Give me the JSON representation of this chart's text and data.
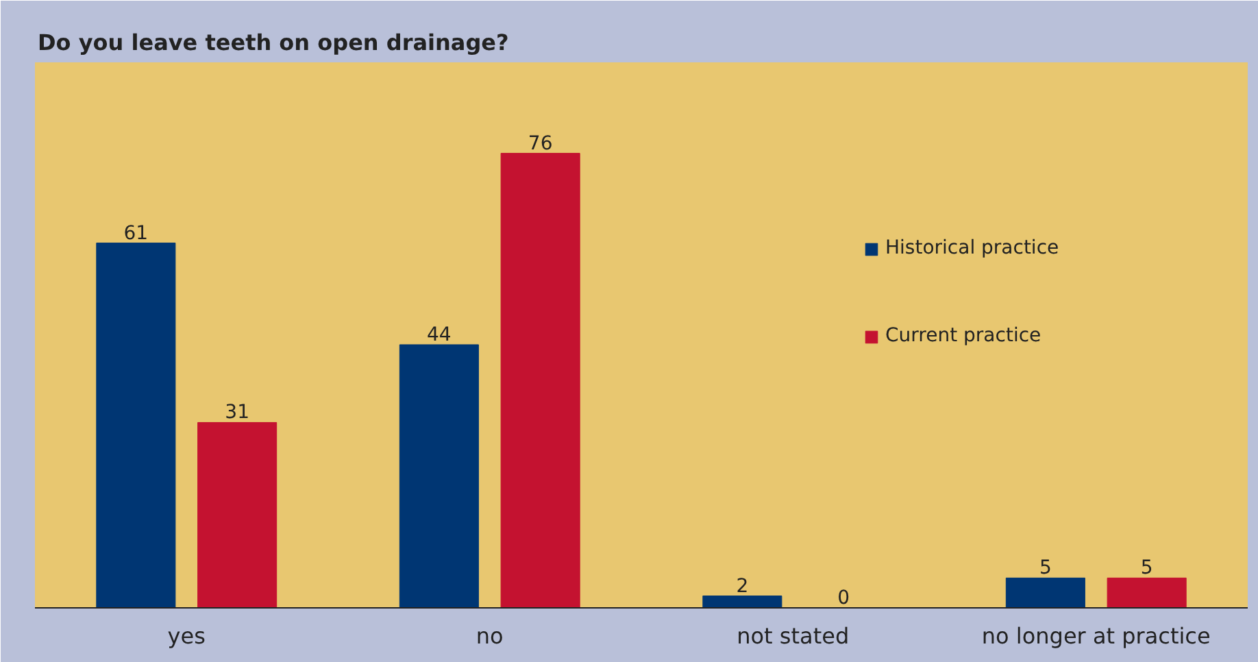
{
  "chart_data": {
    "type": "bar",
    "title": "Do you leave teeth on open drainage?",
    "categories": [
      "yes",
      "no",
      "not stated",
      "no longer at practice"
    ],
    "series": [
      {
        "name": "Historical practice",
        "color": "#003673",
        "values": [
          61,
          44,
          2,
          5
        ]
      },
      {
        "name": "Current practice",
        "color": "#c41230",
        "values": [
          31,
          76,
          0,
          5
        ]
      }
    ],
    "data_labels": true,
    "legend": "top right"
  }
}
